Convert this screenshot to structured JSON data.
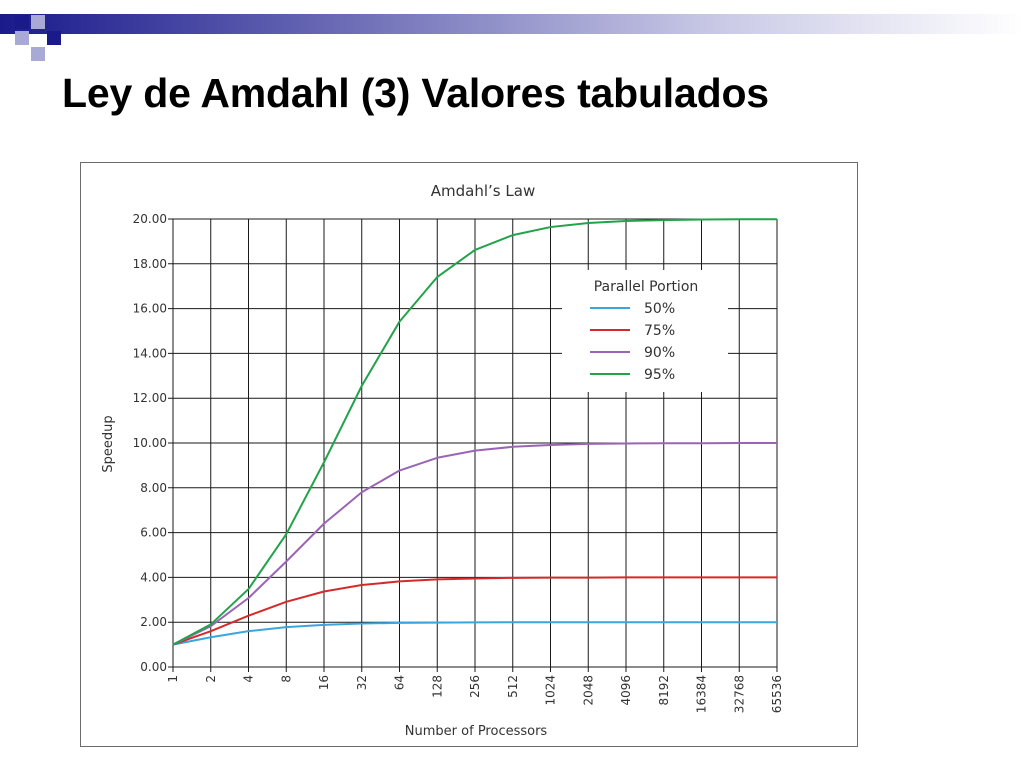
{
  "slide": {
    "title": "Ley de Amdahl (3) Valores tabulados"
  },
  "colors": {
    "decor_dark": "#1a1a8c",
    "decor_light": "#a9a9d6",
    "series_50": "#3aa6dd",
    "series_75": "#d62a2a",
    "series_90": "#9b65b5",
    "series_95": "#22a34a"
  },
  "chart_data": {
    "type": "line",
    "title": "Amdahl’s Law",
    "xlabel": "Number of Processors",
    "ylabel": "Speedup",
    "x_scale": "log2",
    "x": [
      "1",
      "2",
      "4",
      "8",
      "16",
      "32",
      "64",
      "128",
      "256",
      "512",
      "1024",
      "2048",
      "4096",
      "8192",
      "16384",
      "32768",
      "65536"
    ],
    "ylim": [
      0,
      20
    ],
    "yticks": [
      "0.00",
      "2.00",
      "4.00",
      "6.00",
      "8.00",
      "10.00",
      "12.00",
      "14.00",
      "16.00",
      "18.00",
      "20.00"
    ],
    "grid": true,
    "legend": {
      "title": "Parallel Portion",
      "placement": "center-right"
    },
    "series": [
      {
        "name": "50%",
        "color": "#3aa6dd",
        "values": [
          1.0,
          1.33,
          1.6,
          1.78,
          1.88,
          1.94,
          1.97,
          1.98,
          1.99,
          2.0,
          2.0,
          2.0,
          2.0,
          2.0,
          2.0,
          2.0,
          2.0
        ]
      },
      {
        "name": "75%",
        "color": "#d62a2a",
        "values": [
          1.0,
          1.6,
          2.29,
          2.91,
          3.37,
          3.66,
          3.82,
          3.91,
          3.95,
          3.98,
          3.99,
          3.99,
          4.0,
          4.0,
          4.0,
          4.0,
          4.0
        ]
      },
      {
        "name": "90%",
        "color": "#9b65b5",
        "values": [
          1.0,
          1.82,
          3.08,
          4.71,
          6.4,
          7.8,
          8.77,
          9.34,
          9.66,
          9.83,
          9.91,
          9.96,
          9.98,
          9.99,
          9.99,
          10.0,
          10.0
        ]
      },
      {
        "name": "95%",
        "color": "#22a34a",
        "values": [
          1.0,
          1.9,
          3.48,
          5.93,
          9.14,
          12.55,
          15.42,
          17.41,
          18.62,
          19.28,
          19.64,
          19.82,
          19.91,
          19.95,
          19.98,
          19.99,
          19.99
        ]
      }
    ]
  }
}
